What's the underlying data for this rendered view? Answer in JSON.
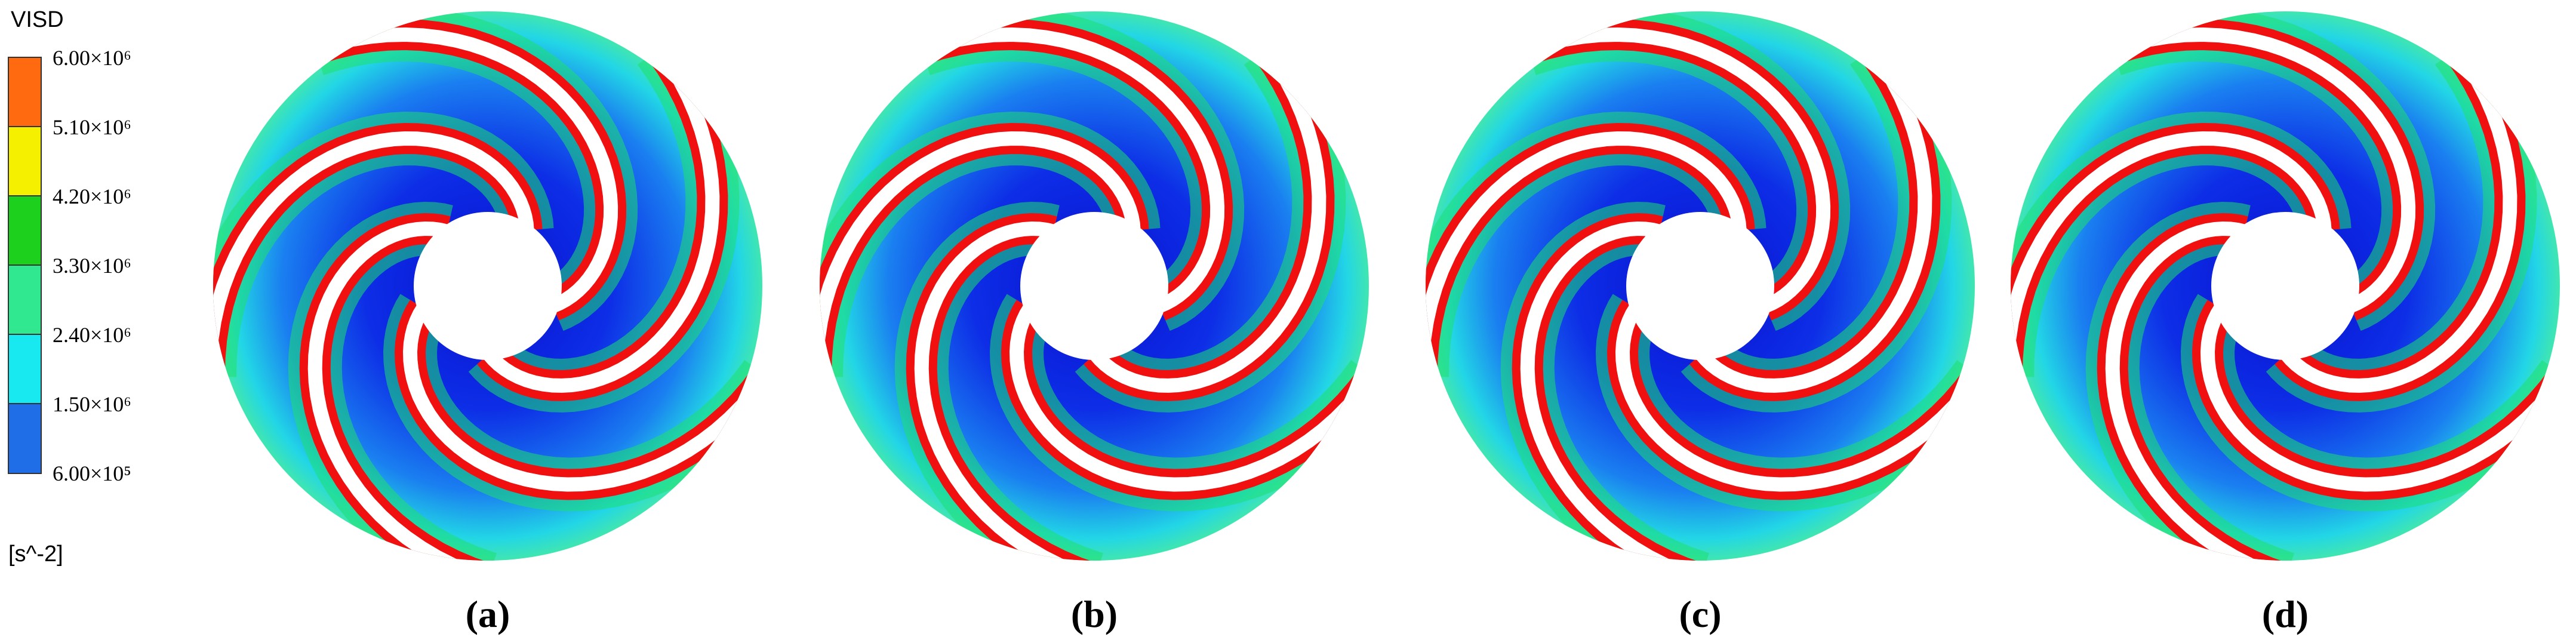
{
  "legend": {
    "title": "VISD",
    "labels": [
      "6.00×10⁶",
      "5.10×10⁶",
      "4.20×10⁶",
      "3.30×10⁶",
      "2.40×10⁶",
      "1.50×10⁶",
      "6.00×10⁵"
    ],
    "unit": "[s^-2]"
  },
  "panels": [
    {
      "label": "(a)"
    },
    {
      "label": "(b)"
    },
    {
      "label": "(c)"
    },
    {
      "label": "(d)"
    }
  ]
}
